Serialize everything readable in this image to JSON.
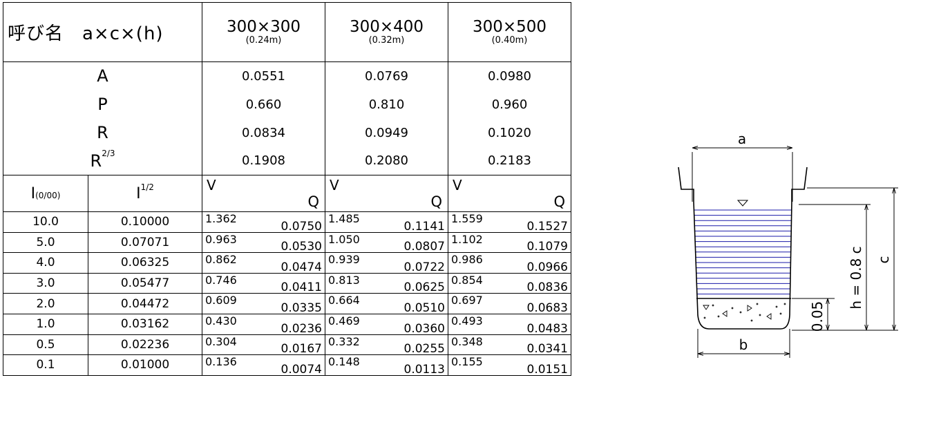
{
  "header": {
    "name_label": "呼び名　a×c×(h)",
    "sizes": [
      {
        "size": "300×300",
        "sub": "(0.24m)"
      },
      {
        "size": "300×400",
        "sub": "(0.32m)"
      },
      {
        "size": "300×500",
        "sub": "(0.40m)"
      }
    ]
  },
  "properties": [
    {
      "label": "A",
      "sup": "",
      "values": [
        "0.0551",
        "0.0769",
        "0.0980"
      ]
    },
    {
      "label": "P",
      "sup": "",
      "values": [
        "0.660",
        "0.810",
        "0.960"
      ]
    },
    {
      "label": "R",
      "sup": "",
      "values": [
        "0.0834",
        "0.0949",
        "0.1020"
      ]
    },
    {
      "label": "R",
      "sup": "2/3",
      "values": [
        "0.1908",
        "0.2080",
        "0.2183"
      ]
    }
  ],
  "subheader": {
    "i_label": "I",
    "i_unit": "(0/00)",
    "i_half_label": "I",
    "i_half_sup": "1/2",
    "v_label": "V",
    "q_label": "Q"
  },
  "rows": [
    {
      "i": "10.0",
      "ih": "0.10000",
      "cells": [
        {
          "v": "1.362",
          "q": "0.0750"
        },
        {
          "v": "1.485",
          "q": "0.1141"
        },
        {
          "v": "1.559",
          "q": "0.1527"
        }
      ]
    },
    {
      "i": "5.0",
      "ih": "0.07071",
      "cells": [
        {
          "v": "0.963",
          "q": "0.0530"
        },
        {
          "v": "1.050",
          "q": "0.0807"
        },
        {
          "v": "1.102",
          "q": "0.1079"
        }
      ]
    },
    {
      "i": "4.0",
      "ih": "0.06325",
      "cells": [
        {
          "v": "0.862",
          "q": "0.0474"
        },
        {
          "v": "0.939",
          "q": "0.0722"
        },
        {
          "v": "0.986",
          "q": "0.0966"
        }
      ]
    },
    {
      "i": "3.0",
      "ih": "0.05477",
      "cells": [
        {
          "v": "0.746",
          "q": "0.0411"
        },
        {
          "v": "0.813",
          "q": "0.0625"
        },
        {
          "v": "0.854",
          "q": "0.0836"
        }
      ]
    },
    {
      "i": "2.0",
      "ih": "0.04472",
      "cells": [
        {
          "v": "0.609",
          "q": "0.0335"
        },
        {
          "v": "0.664",
          "q": "0.0510"
        },
        {
          "v": "0.697",
          "q": "0.0683"
        }
      ]
    },
    {
      "i": "1.0",
      "ih": "0.03162",
      "cells": [
        {
          "v": "0.430",
          "q": "0.0236"
        },
        {
          "v": "0.469",
          "q": "0.0360"
        },
        {
          "v": "0.493",
          "q": "0.0483"
        }
      ]
    },
    {
      "i": "0.5",
      "ih": "0.02236",
      "cells": [
        {
          "v": "0.304",
          "q": "0.0167"
        },
        {
          "v": "0.332",
          "q": "0.0255"
        },
        {
          "v": "0.348",
          "q": "0.0341"
        }
      ]
    },
    {
      "i": "0.1",
      "ih": "0.01000",
      "cells": [
        {
          "v": "0.136",
          "q": "0.0074"
        },
        {
          "v": "0.148",
          "q": "0.0113"
        },
        {
          "v": "0.155",
          "q": "0.0151"
        }
      ]
    }
  ],
  "diagram": {
    "label_a": "a",
    "label_b": "b",
    "label_c": "c",
    "label_h": "h = 0.8 c",
    "label_005": "0.05",
    "water_color": "#1a1aa8"
  }
}
